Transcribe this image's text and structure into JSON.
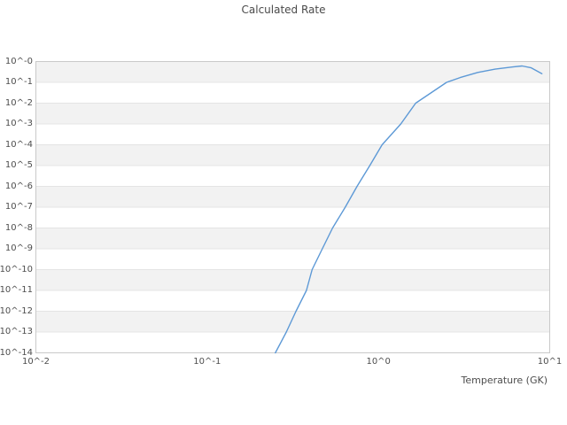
{
  "chart_data": {
    "type": "line",
    "title": "Calculated Rate",
    "xlabel": "Temperature (GK)",
    "ylabel": "",
    "x_scale": "log",
    "y_scale": "log",
    "xlim_log10": [
      -2,
      1
    ],
    "ylim_log10": [
      -14,
      0
    ],
    "xtick_labels": [
      "10^-2",
      "10^-1",
      "10^0",
      "10^1"
    ],
    "ytick_labels": [
      "10^-0",
      "10^-1",
      "10^-2",
      "10^-3",
      "10^-4",
      "10^-5",
      "10^-6",
      "10^-7",
      "10^-8",
      "10^-9",
      "10^-10",
      "10^-11",
      "10^-12",
      "10^-13",
      "10^-14"
    ],
    "grid": {
      "alternating_bands": true,
      "band_color": "#f2f2f2",
      "gridline_color": "#e4e4e4",
      "border_color": "#c9c9c9",
      "vertical_gridlines": false
    },
    "legend": null,
    "series": [
      {
        "name": "Calculated Rate",
        "color": "#5d99d6",
        "x": [
          0.25,
          0.29,
          0.33,
          0.38,
          0.41,
          0.47,
          0.54,
          0.64,
          0.75,
          0.89,
          1.05,
          1.35,
          1.65,
          2.5,
          3.0,
          3.8,
          4.8,
          6.1,
          6.9,
          7.8,
          9.0
        ],
        "y": [
          1e-14,
          1e-13,
          1e-12,
          1e-11,
          1e-10,
          1e-09,
          1e-08,
          1e-07,
          1e-06,
          1e-05,
          0.0001,
          0.001,
          0.01,
          0.1,
          0.17,
          0.3,
          0.43,
          0.55,
          0.61,
          0.5,
          0.26
        ]
      }
    ]
  }
}
